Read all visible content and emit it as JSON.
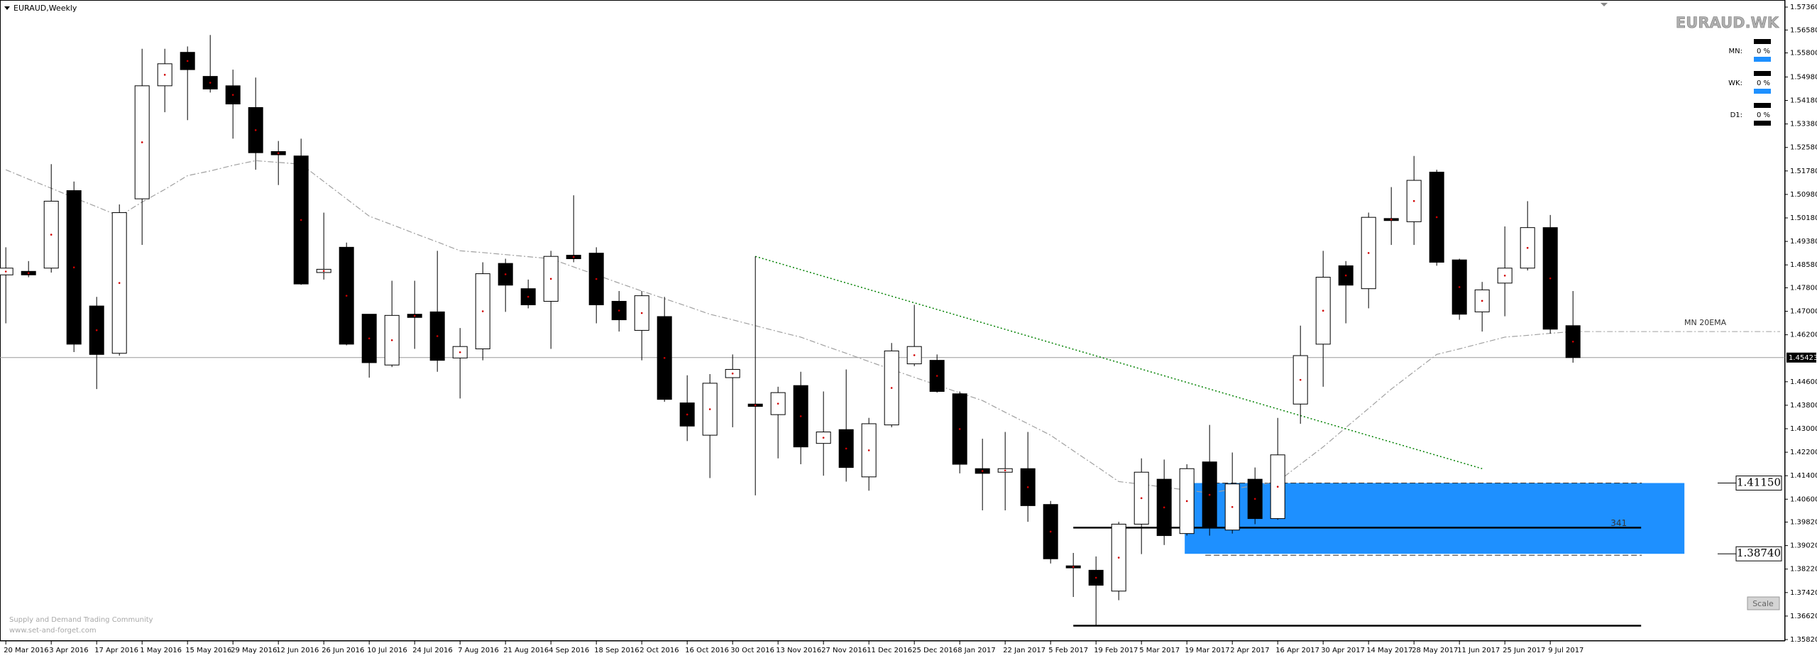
{
  "chart_data": {
    "type": "candlestick",
    "title": "EURAUD,Weekly",
    "symbol_label": "EURAUD.WK",
    "footer": [
      "Supply and Demand Trading Community",
      "www.set-and-forget.com"
    ],
    "scale_button": "Scale",
    "panel": [
      {
        "name": "MN:",
        "value": "0 %"
      },
      {
        "name": "WK:",
        "value": "0 %"
      },
      {
        "name": "D1:",
        "value": "0 %"
      }
    ],
    "categories": [
      "20 Mar 2016",
      null,
      "3 Apr 2016",
      null,
      "17 Apr 2016",
      null,
      "1 May 2016",
      null,
      "15 May 2016",
      null,
      "29 May 2016",
      null,
      "12 Jun 2016",
      null,
      "26 Jun 2016",
      null,
      "10 Jul 2016",
      null,
      "24 Jul 2016",
      null,
      "7 Aug 2016",
      null,
      "21 Aug 2016",
      null,
      "4 Sep 2016",
      null,
      "18 Sep 2016",
      null,
      "2 Oct 2016",
      null,
      "16 Oct 2016",
      null,
      "30 Oct 2016",
      null,
      "13 Nov 2016",
      null,
      "27 Nov 2016",
      null,
      "11 Dec 2016",
      null,
      "25 Dec 2016",
      null,
      "8 Jan 2017",
      null,
      "22 Jan 2017",
      null,
      "5 Feb 2017",
      null,
      "19 Feb 2017",
      null,
      "5 Mar 2017",
      null,
      "19 Mar 2017",
      null,
      "2 Apr 2017",
      null,
      "16 Apr 2017",
      null,
      "30 Apr 2017",
      null,
      "14 May 2017",
      null,
      "28 May 2017",
      null,
      "11 Jun 2017",
      null,
      "25 Jun 2017",
      null,
      "9 Jul 2017",
      null
    ],
    "open": [
      1.4824,
      1.4836,
      1.4847,
      1.5111,
      1.4718,
      1.4557,
      1.5083,
      1.5468,
      1.5582,
      1.55,
      1.5468,
      1.5394,
      1.5244,
      1.5229,
      1.4832,
      1.4918,
      1.469,
      1.4517,
      1.469,
      1.4698,
      1.4541,
      1.4572,
      1.4863,
      1.4777,
      1.4734,
      1.4891,
      1.4898,
      1.4734,
      1.4635,
      1.4682,
      1.4388,
      1.4278,
      1.4474,
      1.4384,
      1.4348,
      1.4447,
      1.425,
      1.4297,
      1.4136,
      1.4313,
      1.4521,
      1.4533,
      1.4419,
      1.4164,
      1.4152,
      1.4164,
      1.4042,
      1.3833,
      1.3818,
      1.3747,
      1.3975,
      1.4128,
      1.3943,
      1.4187,
      1.3955,
      1.4128,
      1.3994,
      1.4384,
      1.4588,
      1.4855,
      1.4777,
      1.5016,
      1.5005,
      1.5174,
      1.4875,
      1.4698,
      1.4796,
      1.4847,
      1.4985,
      1.4651
    ],
    "high": [
      1.4918,
      1.4871,
      1.5201,
      1.5142,
      1.4749,
      1.5064,
      1.5594,
      1.5594,
      1.5602,
      1.5641,
      1.5523,
      1.5496,
      1.528,
      1.5288,
      1.5036,
      1.4934,
      1.469,
      1.4804,
      1.4804,
      1.4906,
      1.4643,
      1.4867,
      1.4879,
      1.4808,
      1.4906,
      1.5095,
      1.4918,
      1.4769,
      1.4769,
      1.4749,
      1.4482,
      1.4486,
      1.4553,
      1.4887,
      1.4443,
      1.4494,
      1.4427,
      1.4502,
      1.4337,
      1.4592,
      1.4722,
      1.4553,
      1.4427,
      1.4266,
      1.4289,
      1.4289,
      1.4054,
      1.3877,
      1.3865,
      1.3983,
      1.4199,
      1.4195,
      1.4179,
      1.4313,
      1.4219,
      1.4168,
      1.4337,
      1.4651,
      1.4906,
      1.4871,
      1.5036,
      1.5123,
      1.5229,
      1.5182,
      1.4879,
      1.48,
      1.4989,
      1.5075,
      1.5028,
      1.4769
    ],
    "low": [
      1.4659,
      1.4816,
      1.4832,
      1.4561,
      1.4435,
      1.4549,
      1.4926,
      1.5378,
      1.5351,
      1.5445,
      1.5288,
      1.5182,
      1.513,
      1.479,
      1.4808,
      1.4584,
      1.4474,
      1.451,
      1.4572,
      1.4494,
      1.4403,
      1.4533,
      1.4698,
      1.471,
      1.4572,
      1.4867,
      1.4659,
      1.4631,
      1.4533,
      1.4392,
      1.4258,
      1.4132,
      1.4305,
      1.4073,
      1.4199,
      1.4179,
      1.414,
      1.412,
      1.4089,
      1.4305,
      1.4513,
      1.4423,
      1.4148,
      1.4022,
      1.4022,
      1.3983,
      1.3841,
      1.3727,
      1.3629,
      1.3716,
      1.3873,
      1.3904,
      1.3936,
      1.3936,
      1.3943,
      1.3975,
      1.399,
      1.4317,
      1.4443,
      1.4659,
      1.471,
      1.4926,
      1.4926,
      1.4855,
      1.4671,
      1.4631,
      1.4683,
      1.4839,
      1.4624,
      1.4525
    ],
    "close": [
      1.4847,
      1.4824,
      1.5075,
      1.4588,
      1.4553,
      1.5036,
      1.5468,
      1.5543,
      1.5523,
      1.5457,
      1.5406,
      1.524,
      1.5233,
      1.4793,
      1.4843,
      1.4588,
      1.4525,
      1.4686,
      1.4679,
      1.4533,
      1.458,
      1.4828,
      1.4789,
      1.4722,
      1.4887,
      1.4879,
      1.4722,
      1.4671,
      1.4753,
      1.44,
      1.4309,
      1.4455,
      1.4502,
      1.4376,
      1.4423,
      1.4238,
      1.4289,
      1.4168,
      1.4317,
      1.4565,
      1.458,
      1.4427,
      1.4179,
      1.4148,
      1.4164,
      1.4038,
      1.3857,
      1.3826,
      1.3767,
      1.3975,
      1.4152,
      1.3936,
      1.4164,
      1.3963,
      1.4112,
      1.3994,
      1.4211,
      1.4549,
      1.4816,
      1.4789,
      1.502,
      1.5009,
      1.5146,
      1.4867,
      1.469,
      1.4773,
      1.4847,
      1.4985,
      1.4639,
      1.45423
    ],
    "ema": {
      "name": "MN 20EMA",
      "color": "#a0a0a0",
      "values": [
        1.5182,
        1.515,
        1.5119,
        1.5087,
        1.5056,
        1.5024,
        1.5072,
        1.5115,
        1.5162,
        1.5178,
        1.5197,
        1.5213,
        1.5207,
        1.5201,
        1.5142,
        1.5083,
        1.5024,
        1.4995,
        1.4965,
        1.4936,
        1.4906,
        1.49,
        1.4893,
        1.4886,
        1.4879,
        1.4851,
        1.4824,
        1.4796,
        1.4769,
        1.4743,
        1.4717,
        1.469,
        1.4671,
        1.4651,
        1.4631,
        1.4612,
        1.4584,
        1.4557,
        1.4529,
        1.4502,
        1.4475,
        1.4449,
        1.4422,
        1.4396,
        1.4356,
        1.4317,
        1.4278,
        1.4225,
        1.4173,
        1.412,
        1.4111,
        1.4101,
        1.4091,
        1.4081,
        1.4094,
        1.4107,
        1.412,
        1.4179,
        1.4238,
        1.4304,
        1.4369,
        1.4435,
        1.4494,
        1.4553,
        1.4572,
        1.4592,
        1.4612,
        1.4618,
        1.4625,
        1.4631
      ]
    },
    "trendline": {
      "color": "#008000",
      "x": [
        33,
        65
      ],
      "values": [
        1.4887,
        1.4164
      ]
    },
    "zone": {
      "color": "#1e90ff",
      "x": [
        52,
        74
      ],
      "high": {
        "value": 1.4115,
        "label": "1.41150"
      },
      "low": {
        "value": 1.3874,
        "label": "1.38740"
      }
    },
    "levels": [
      1.3963,
      1.3629
    ],
    "levels_x": [
      47,
      72
    ],
    "levels_label": "341",
    "current_price": {
      "value": 1.45423,
      "label": "1.45423"
    },
    "ylim": [
      1.3582,
      1.5736
    ],
    "yticks": [
      {
        "value": 1.5736,
        "label": "1.57360"
      },
      {
        "value": 1.5658,
        "label": "1.56580"
      },
      {
        "value": 1.558,
        "label": "1.55800"
      },
      {
        "value": 1.5498,
        "label": "1.54980"
      },
      {
        "value": 1.5418,
        "label": "1.54180"
      },
      {
        "value": 1.5338,
        "label": "1.53380"
      },
      {
        "value": 1.5258,
        "label": "1.52580"
      },
      {
        "value": 1.5178,
        "label": "1.51780"
      },
      {
        "value": 1.5098,
        "label": "1.50980"
      },
      {
        "value": 1.5018,
        "label": "1.50180"
      },
      {
        "value": 1.4938,
        "label": "1.49380"
      },
      {
        "value": 1.4858,
        "label": "1.48580"
      },
      {
        "value": 1.478,
        "label": "1.47800"
      },
      {
        "value": 1.47,
        "label": "1.47000"
      },
      {
        "value": 1.462,
        "label": "1.46200"
      },
      {
        "value": 1.446,
        "label": "1.44600"
      },
      {
        "value": 1.438,
        "label": "1.43800"
      },
      {
        "value": 1.43,
        "label": "1.43000"
      },
      {
        "value": 1.422,
        "label": "1.42200"
      },
      {
        "value": 1.414,
        "label": "1.41400"
      },
      {
        "value": 1.406,
        "label": "1.40600"
      },
      {
        "value": 1.3982,
        "label": "1.39820"
      },
      {
        "value": 1.3902,
        "label": "1.39020"
      },
      {
        "value": 1.3822,
        "label": "1.38220"
      },
      {
        "value": 1.3742,
        "label": "1.37420"
      },
      {
        "value": 1.3662,
        "label": "1.36620"
      },
      {
        "value": 1.3582,
        "label": "1.35820"
      }
    ],
    "grid": false
  }
}
